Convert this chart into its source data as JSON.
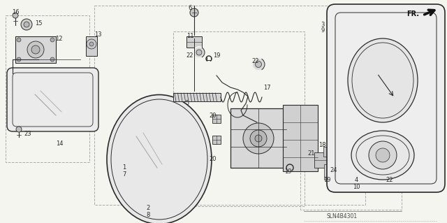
{
  "bg_color": "#f5f5f0",
  "line_color": "#2a2a2a",
  "diagram_id": "SLN4B4301",
  "fr_label": "FR.",
  "figw": 6.4,
  "figh": 3.19,
  "dpi": 100
}
